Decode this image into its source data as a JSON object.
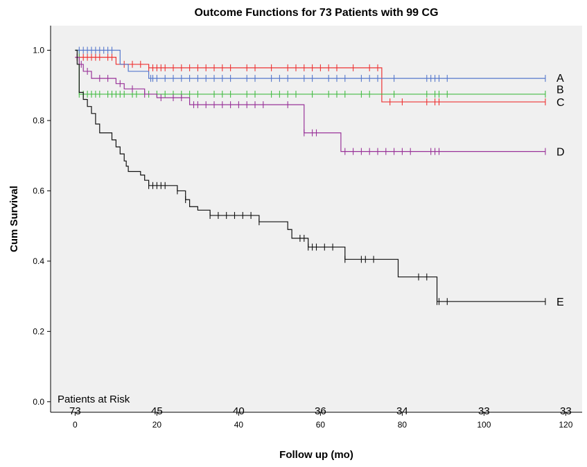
{
  "chart_data": {
    "type": "line",
    "subtype": "kaplan-meier-step",
    "title": "Outcome Functions for 73 Patients with 99 CG",
    "xlabel": "Follow up (mo)",
    "ylabel": "Cum Survival",
    "xlim": [
      -6,
      124
    ],
    "ylim": [
      -0.03,
      1.07
    ],
    "x_ticks": [
      0,
      20,
      40,
      60,
      80,
      100,
      120
    ],
    "y_ticks": [
      0.0,
      0.2,
      0.4,
      0.6,
      0.8,
      1.0
    ],
    "y_tick_labels": [
      "0.0",
      "0.2",
      "0.4",
      "0.6",
      "0.8",
      "1.0"
    ],
    "grid": false,
    "background": "#f0f0f0",
    "series": [
      {
        "name": "A",
        "color": "#5577cc",
        "steps": [
          [
            0,
            1.0
          ],
          [
            11,
            0.96
          ],
          [
            13,
            0.94
          ],
          [
            18,
            0.92
          ],
          [
            115,
            0.92
          ]
        ],
        "censors": [
          1,
          2,
          3,
          4,
          5,
          6,
          7,
          8,
          9,
          18.5,
          19,
          20,
          22,
          24,
          26,
          28,
          30,
          32,
          34,
          36,
          38,
          42,
          44,
          48,
          50,
          52,
          56,
          58,
          62,
          64,
          66,
          70,
          72,
          74,
          78,
          86,
          87,
          88,
          89,
          91,
          115
        ]
      },
      {
        "name": "B",
        "color": "#44bb44",
        "steps": [
          [
            0,
            1.0
          ],
          [
            1,
            0.875
          ],
          [
            115,
            0.875
          ]
        ],
        "censors": [
          1,
          2,
          3,
          4,
          5,
          6,
          8,
          9,
          10,
          11,
          12,
          14,
          15,
          18,
          20,
          22,
          24,
          26,
          28,
          30,
          34,
          36,
          38,
          42,
          44,
          48,
          50,
          52,
          54,
          58,
          62,
          64,
          66,
          70,
          72,
          78,
          86,
          88,
          89,
          91,
          115
        ]
      },
      {
        "name": "C",
        "color": "#ee3333",
        "steps": [
          [
            0,
            0.98
          ],
          [
            10,
            0.96
          ],
          [
            18,
            0.95
          ],
          [
            75,
            0.95
          ],
          [
            75,
            0.853
          ],
          [
            115,
            0.853
          ]
        ],
        "censors": [
          0.5,
          1,
          2,
          3,
          4,
          5,
          6,
          8,
          9,
          12,
          14,
          16,
          18,
          19,
          20,
          21,
          22,
          24,
          26,
          28,
          30,
          32,
          34,
          36,
          38,
          42,
          44,
          48,
          52,
          54,
          56,
          58,
          60,
          62,
          64,
          68,
          72,
          74,
          77,
          80,
          86,
          88,
          89,
          115
        ]
      },
      {
        "name": "D",
        "color": "#993399",
        "steps": [
          [
            0,
            0.98
          ],
          [
            1,
            0.96
          ],
          [
            2,
            0.94
          ],
          [
            4,
            0.92
          ],
          [
            10,
            0.905
          ],
          [
            12,
            0.89
          ],
          [
            17,
            0.875
          ],
          [
            20,
            0.865
          ],
          [
            28,
            0.845
          ],
          [
            55,
            0.845
          ],
          [
            56,
            0.765
          ],
          [
            64,
            0.765
          ],
          [
            65,
            0.712
          ],
          [
            115,
            0.712
          ]
        ],
        "censors": [
          0.5,
          1.5,
          3,
          6,
          8,
          11,
          14,
          17,
          21,
          24,
          26,
          29,
          30,
          32,
          34,
          36,
          38,
          40,
          42,
          44,
          46,
          52,
          56,
          58,
          59,
          66,
          68,
          70,
          72,
          74,
          76,
          78,
          80,
          82,
          87,
          88,
          89,
          115
        ]
      },
      {
        "name": "E",
        "color": "#111111",
        "steps": [
          [
            0,
            1.0
          ],
          [
            0.5,
            0.96
          ],
          [
            1,
            0.88
          ],
          [
            2,
            0.86
          ],
          [
            3,
            0.84
          ],
          [
            4,
            0.82
          ],
          [
            5,
            0.79
          ],
          [
            6,
            0.765
          ],
          [
            9,
            0.745
          ],
          [
            10,
            0.725
          ],
          [
            11,
            0.705
          ],
          [
            12,
            0.685
          ],
          [
            12.5,
            0.67
          ],
          [
            13,
            0.655
          ],
          [
            16,
            0.645
          ],
          [
            17,
            0.63
          ],
          [
            18,
            0.615
          ],
          [
            25,
            0.6
          ],
          [
            27,
            0.575
          ],
          [
            28,
            0.555
          ],
          [
            30,
            0.545
          ],
          [
            33,
            0.53
          ],
          [
            45,
            0.512
          ],
          [
            52,
            0.49
          ],
          [
            53,
            0.465
          ],
          [
            57,
            0.44
          ],
          [
            66,
            0.405
          ],
          [
            74,
            0.405
          ],
          [
            79,
            0.355
          ],
          [
            88,
            0.355
          ],
          [
            88.5,
            0.285
          ],
          [
            115,
            0.285
          ]
        ],
        "censors": [
          18,
          19,
          20,
          21,
          22,
          25,
          27,
          33,
          35,
          37,
          39,
          41,
          43,
          45,
          55,
          56,
          57,
          58,
          59,
          61,
          63,
          66,
          70,
          71,
          73,
          84,
          86,
          88.5,
          89,
          91,
          115
        ]
      }
    ],
    "patients_at_risk": {
      "label": "Patients at Risk",
      "x": [
        0,
        20,
        40,
        60,
        80,
        100,
        120
      ],
      "values": [
        "73",
        "45",
        "40",
        "36",
        "34",
        "33",
        "33"
      ]
    }
  }
}
